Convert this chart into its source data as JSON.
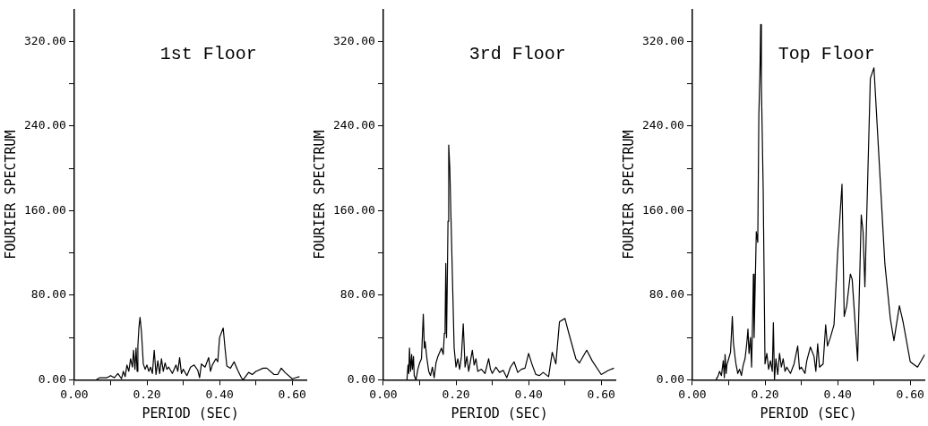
{
  "chart_data": [
    {
      "type": "line",
      "title": "1st Floor",
      "xlabel": "PERIOD (SEC)",
      "ylabel": "FOURIER SPECTRUM",
      "grid": false,
      "legend": false,
      "xlim": [
        0,
        0.64
      ],
      "ylim": [
        0,
        350
      ],
      "xticks": [
        {
          "value": 0,
          "label": "0.00"
        },
        {
          "value": 0.1,
          "label": null
        },
        {
          "value": 0.2,
          "label": "0.20"
        },
        {
          "value": 0.3,
          "label": null
        },
        {
          "value": 0.4,
          "label": "0.40"
        },
        {
          "value": 0.5,
          "label": null
        },
        {
          "value": 0.6,
          "label": "0.60"
        }
      ],
      "yticks": [
        {
          "value": 0,
          "label": "0.00"
        },
        {
          "value": 40,
          "label": null
        },
        {
          "value": 80,
          "label": "80.00"
        },
        {
          "value": 120,
          "label": null
        },
        {
          "value": 160,
          "label": "160.00"
        },
        {
          "value": 200,
          "label": null
        },
        {
          "value": 240,
          "label": "240.00"
        },
        {
          "value": 280,
          "label": null
        },
        {
          "value": 320,
          "label": "320.00"
        }
      ],
      "series": [
        {
          "color": "#000000",
          "x": [
            0.06,
            0.07,
            0.09,
            0.1,
            0.11,
            0.12,
            0.13,
            0.135,
            0.14,
            0.145,
            0.15,
            0.155,
            0.16,
            0.163,
            0.167,
            0.17,
            0.173,
            0.175,
            0.178,
            0.181,
            0.185,
            0.19,
            0.195,
            0.2,
            0.205,
            0.21,
            0.215,
            0.22,
            0.225,
            0.23,
            0.235,
            0.24,
            0.245,
            0.25,
            0.255,
            0.26,
            0.27,
            0.28,
            0.285,
            0.29,
            0.295,
            0.3,
            0.31,
            0.32,
            0.33,
            0.34,
            0.345,
            0.35,
            0.36,
            0.37,
            0.375,
            0.38,
            0.39,
            0.395,
            0.4,
            0.41,
            0.415,
            0.42,
            0.43,
            0.44,
            0.45,
            0.46,
            0.465,
            0.48,
            0.49,
            0.5,
            0.52,
            0.53,
            0.55,
            0.56,
            0.57,
            0.58,
            0.6,
            0.61,
            0.62
          ],
          "values": [
            0,
            2,
            2,
            4,
            2,
            6,
            1,
            8,
            3,
            14,
            8,
            20,
            12,
            28,
            10,
            30,
            8,
            32,
            50,
            59,
            45,
            15,
            10,
            14,
            8,
            12,
            6,
            28,
            5,
            18,
            6,
            20,
            8,
            16,
            10,
            12,
            6,
            14,
            8,
            21,
            6,
            10,
            4,
            12,
            14,
            9,
            2,
            15,
            12,
            21,
            8,
            14,
            20,
            17,
            40,
            49,
            30,
            13,
            11,
            17,
            9,
            2,
            0,
            7,
            5,
            8,
            11,
            11,
            5,
            5,
            11,
            7,
            1,
            2,
            3
          ]
        }
      ]
    },
    {
      "type": "line",
      "title": "3rd Floor",
      "xlabel": "PERIOD (SEC)",
      "ylabel": "FOURIER SPECTRUM",
      "grid": false,
      "legend": false,
      "xlim": [
        0,
        0.64
      ],
      "ylim": [
        0,
        350
      ],
      "xticks": [
        {
          "value": 0,
          "label": "0.00"
        },
        {
          "value": 0.1,
          "label": null
        },
        {
          "value": 0.2,
          "label": "0.20"
        },
        {
          "value": 0.3,
          "label": null
        },
        {
          "value": 0.4,
          "label": "0.40"
        },
        {
          "value": 0.5,
          "label": null
        },
        {
          "value": 0.6,
          "label": "0.60"
        }
      ],
      "yticks": [
        {
          "value": 0,
          "label": "0.00"
        },
        {
          "value": 40,
          "label": null
        },
        {
          "value": 80,
          "label": "80.00"
        },
        {
          "value": 120,
          "label": null
        },
        {
          "value": 160,
          "label": "160.00"
        },
        {
          "value": 200,
          "label": null
        },
        {
          "value": 240,
          "label": "240.00"
        },
        {
          "value": 280,
          "label": null
        },
        {
          "value": 320,
          "label": "320.00"
        }
      ],
      "series": [
        {
          "color": "#000000",
          "x": [
            0.065,
            0.068,
            0.07,
            0.072,
            0.075,
            0.078,
            0.08,
            0.083,
            0.085,
            0.09,
            0.095,
            0.1,
            0.105,
            0.11,
            0.113,
            0.115,
            0.12,
            0.125,
            0.13,
            0.135,
            0.14,
            0.145,
            0.15,
            0.155,
            0.16,
            0.165,
            0.168,
            0.17,
            0.172,
            0.174,
            0.176,
            0.178,
            0.18,
            0.183,
            0.19,
            0.195,
            0.2,
            0.205,
            0.21,
            0.215,
            0.22,
            0.225,
            0.23,
            0.235,
            0.24,
            0.245,
            0.25,
            0.255,
            0.26,
            0.27,
            0.28,
            0.29,
            0.295,
            0.3,
            0.31,
            0.32,
            0.33,
            0.34,
            0.35,
            0.36,
            0.37,
            0.38,
            0.39,
            0.4,
            0.41,
            0.42,
            0.43,
            0.44,
            0.455,
            0.465,
            0.475,
            0.485,
            0.5,
            0.51,
            0.53,
            0.54,
            0.56,
            0.575,
            0.6,
            0.62,
            0.635
          ],
          "values": [
            0,
            14,
            6,
            30,
            8,
            24,
            10,
            22,
            4,
            0,
            10,
            16,
            20,
            62,
            30,
            36,
            20,
            8,
            4,
            12,
            2,
            16,
            22,
            26,
            30,
            24,
            44,
            52,
            110,
            40,
            90,
            150,
            222,
            200,
            100,
            30,
            12,
            20,
            10,
            22,
            53,
            12,
            22,
            8,
            18,
            28,
            14,
            20,
            8,
            10,
            6,
            20,
            10,
            6,
            12,
            7,
            9,
            2,
            12,
            17,
            7,
            10,
            11,
            25,
            14,
            5,
            4,
            7,
            3,
            26,
            15,
            55,
            58,
            45,
            20,
            16,
            28,
            18,
            5,
            9,
            11
          ]
        }
      ]
    },
    {
      "type": "line",
      "title": "Top Floor",
      "xlabel": "PERIOD (SEC)",
      "ylabel": "FOURIER SPECTRUM",
      "grid": false,
      "legend": false,
      "xlim": [
        0,
        0.64
      ],
      "ylim": [
        0,
        350
      ],
      "xticks": [
        {
          "value": 0,
          "label": "0.00"
        },
        {
          "value": 0.1,
          "label": null
        },
        {
          "value": 0.2,
          "label": "0.20"
        },
        {
          "value": 0.3,
          "label": null
        },
        {
          "value": 0.4,
          "label": "0.40"
        },
        {
          "value": 0.5,
          "label": null
        },
        {
          "value": 0.6,
          "label": "0.60"
        }
      ],
      "yticks": [
        {
          "value": 0,
          "label": "0.00"
        },
        {
          "value": 40,
          "label": null
        },
        {
          "value": 80,
          "label": "80.00"
        },
        {
          "value": 120,
          "label": null
        },
        {
          "value": 160,
          "label": "160.00"
        },
        {
          "value": 200,
          "label": null
        },
        {
          "value": 240,
          "label": "240.00"
        },
        {
          "value": 280,
          "label": null
        },
        {
          "value": 320,
          "label": "320.00"
        }
      ],
      "series": [
        {
          "color": "#000000",
          "x": [
            0.065,
            0.07,
            0.075,
            0.08,
            0.085,
            0.088,
            0.09,
            0.093,
            0.095,
            0.1,
            0.105,
            0.11,
            0.113,
            0.118,
            0.12,
            0.125,
            0.13,
            0.135,
            0.14,
            0.145,
            0.15,
            0.153,
            0.156,
            0.16,
            0.163,
            0.166,
            0.168,
            0.17,
            0.173,
            0.176,
            0.18,
            0.183,
            0.186,
            0.188,
            0.19,
            0.195,
            0.2,
            0.205,
            0.21,
            0.215,
            0.22,
            0.223,
            0.226,
            0.23,
            0.235,
            0.24,
            0.245,
            0.25,
            0.255,
            0.26,
            0.27,
            0.28,
            0.29,
            0.295,
            0.3,
            0.31,
            0.315,
            0.325,
            0.335,
            0.34,
            0.345,
            0.35,
            0.36,
            0.367,
            0.372,
            0.38,
            0.39,
            0.4,
            0.412,
            0.418,
            0.425,
            0.435,
            0.44,
            0.455,
            0.465,
            0.47,
            0.475,
            0.49,
            0.5,
            0.53,
            0.545,
            0.555,
            0.57,
            0.58,
            0.6,
            0.62,
            0.64
          ],
          "values": [
            0,
            3,
            8,
            4,
            18,
            2,
            24,
            6,
            14,
            20,
            26,
            60,
            35,
            20,
            15,
            6,
            10,
            4,
            14,
            20,
            35,
            48,
            25,
            40,
            12,
            60,
            100,
            40,
            90,
            140,
            130,
            250,
            290,
            336,
            280,
            180,
            15,
            25,
            10,
            18,
            8,
            54,
            0,
            20,
            5,
            25,
            12,
            20,
            8,
            12,
            6,
            15,
            32,
            10,
            12,
            6,
            18,
            31,
            22,
            8,
            34,
            12,
            15,
            52,
            32,
            40,
            52,
            120,
            185,
            60,
            70,
            100,
            95,
            18,
            156,
            140,
            88,
            285,
            295,
            110,
            58,
            37,
            70,
            55,
            17,
            12,
            24
          ]
        }
      ]
    }
  ]
}
